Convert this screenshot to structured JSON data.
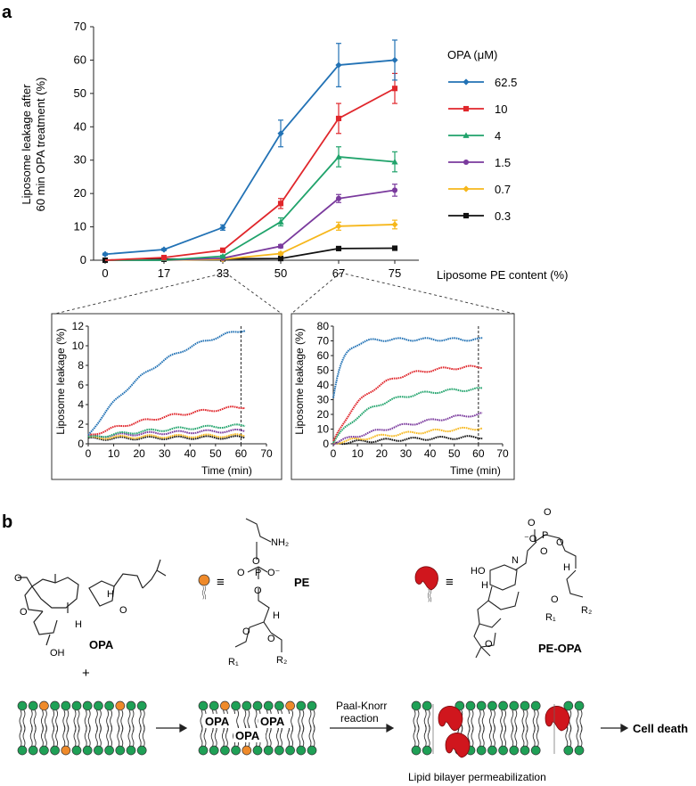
{
  "panels": {
    "a_label": "a",
    "b_label": "b"
  },
  "colors": {
    "c62_5": "#2272b5",
    "c10": "#e0262b",
    "c4": "#20a36b",
    "c1_5": "#7a3a9d",
    "c0_7": "#f6b71b",
    "c0_3": "#111111",
    "lipid_head": "#1fa056",
    "pe_head": "#ef8a2a",
    "opa_shape": "#d0161d"
  },
  "chart_data": [
    {
      "id": "main",
      "type": "line",
      "ylabel_line1": "Liposome leakage after",
      "ylabel_line2": "60 min OPA treatment (%)",
      "xlabel": "Liposome PE content (%)",
      "categories": [
        "0",
        "17",
        "33",
        "50",
        "67",
        "75"
      ],
      "ylim": [
        0,
        70
      ],
      "yticks": [
        "0",
        "10",
        "20",
        "30",
        "40",
        "50",
        "60",
        "70"
      ],
      "legend_title": "OPA (μM)",
      "series": [
        {
          "name": "62.5",
          "color": "#2272b5",
          "marker": "diamond",
          "values": [
            1.8,
            3.2,
            9.8,
            38,
            58.5,
            60
          ],
          "errors": [
            0.3,
            0.3,
            0.8,
            4,
            6.5,
            6
          ]
        },
        {
          "name": "10",
          "color": "#e0262b",
          "marker": "square",
          "values": [
            null,
            0.8,
            3.0,
            17,
            42.5,
            51.5
          ],
          "errors": [
            0,
            0.2,
            0.4,
            1.5,
            4.5,
            4.5
          ]
        },
        {
          "name": "4",
          "color": "#20a36b",
          "marker": "triangle",
          "values": [
            null,
            null,
            1.2,
            11.5,
            31,
            29.5
          ],
          "errors": [
            0,
            0,
            0.3,
            1.2,
            3,
            3
          ]
        },
        {
          "name": "1.5",
          "color": "#7a3a9d",
          "marker": "circle",
          "values": [
            null,
            null,
            0.6,
            4.2,
            18.5,
            21
          ],
          "errors": [
            0,
            0,
            0.2,
            0.5,
            1.2,
            1.8
          ]
        },
        {
          "name": "0.7",
          "color": "#f6b71b",
          "marker": "diamond",
          "values": [
            null,
            null,
            0.3,
            2.0,
            10.2,
            10.7
          ],
          "errors": [
            0,
            0,
            0.1,
            0.4,
            1.2,
            1.3
          ]
        },
        {
          "name": "0.3",
          "color": "#111111",
          "marker": "square",
          "values": [
            0,
            0.3,
            0.4,
            0.5,
            3.5,
            3.6
          ],
          "errors": [
            0,
            0,
            0,
            0,
            0.3,
            0.3
          ]
        }
      ]
    },
    {
      "id": "inset_left",
      "type": "scatter",
      "ylabel": "Liposome leakage (%)",
      "xlabel": "Time (min)",
      "xlim": [
        0,
        70
      ],
      "ylim": [
        0,
        12
      ],
      "xticks": [
        "0",
        "10",
        "20",
        "30",
        "40",
        "50",
        "60",
        "70"
      ],
      "yticks": [
        "0",
        "2",
        "4",
        "6",
        "8",
        "10",
        "12"
      ],
      "marker_time": 60,
      "series": [
        {
          "name": "62.5",
          "color": "#2272b5",
          "start": 0.8,
          "plateau": 13.5,
          "tau": 32
        },
        {
          "name": "10",
          "color": "#e0262b",
          "start": 0.8,
          "plateau": 4.8,
          "tau": 45
        },
        {
          "name": "4",
          "color": "#20a36b",
          "start": 0.6,
          "plateau": 2.2,
          "tau": 40
        },
        {
          "name": "1.5",
          "color": "#7a3a9d",
          "start": 0.7,
          "plateau": 1.5,
          "tau": 40
        },
        {
          "name": "0.7",
          "color": "#f6b71b",
          "start": 0.6,
          "plateau": 0.9,
          "tau": 40
        },
        {
          "name": "0.3",
          "color": "#111111",
          "start": 0.5,
          "plateau": 0.7,
          "tau": 40
        }
      ]
    },
    {
      "id": "inset_right",
      "type": "scatter",
      "ylabel": "Liposome leakage (%)",
      "xlabel": "Time (min)",
      "xlim": [
        0,
        70
      ],
      "ylim": [
        0,
        80
      ],
      "xticks": [
        "0",
        "10",
        "20",
        "30",
        "40",
        "50",
        "60",
        "70"
      ],
      "yticks": [
        "0",
        "10",
        "20",
        "30",
        "40",
        "50",
        "60",
        "70",
        "80"
      ],
      "marker_time": 60,
      "series": [
        {
          "name": "62.5",
          "color": "#2272b5",
          "start": 32,
          "plateau": 71,
          "tau": 4
        },
        {
          "name": "10",
          "color": "#e0262b",
          "start": 1,
          "plateau": 53,
          "tau": 14
        },
        {
          "name": "4",
          "color": "#20a36b",
          "start": 1,
          "plateau": 38,
          "tau": 16
        },
        {
          "name": "1.5",
          "color": "#7a3a9d",
          "start": 0.5,
          "plateau": 30,
          "tau": 55
        },
        {
          "name": "0.7",
          "color": "#f6b71b",
          "start": 0.5,
          "plateau": 15,
          "tau": 50
        },
        {
          "name": "0.3",
          "color": "#111111",
          "start": 0.3,
          "plateau": 6,
          "tau": 45
        }
      ]
    }
  ],
  "scheme": {
    "opa_label": "OPA",
    "pe_label": "PE",
    "peopa_label": "PE-OPA",
    "plus": "+",
    "equiv": "≡",
    "reaction_line1": "Paal-Knorr",
    "reaction_line2": "reaction",
    "membrane_opa": "OPA",
    "outcome": "Cell death",
    "caption": "Lipid bilayer permeabilization",
    "atoms": {
      "nh2": "NH₂",
      "o": "O",
      "p": "P",
      "ominus": "O⁻",
      "minus_o": "⁻O",
      "h": "H",
      "oh": "OH",
      "ho": "HO",
      "n": "N",
      "r1": "R₁",
      "r2": "R₂"
    }
  }
}
